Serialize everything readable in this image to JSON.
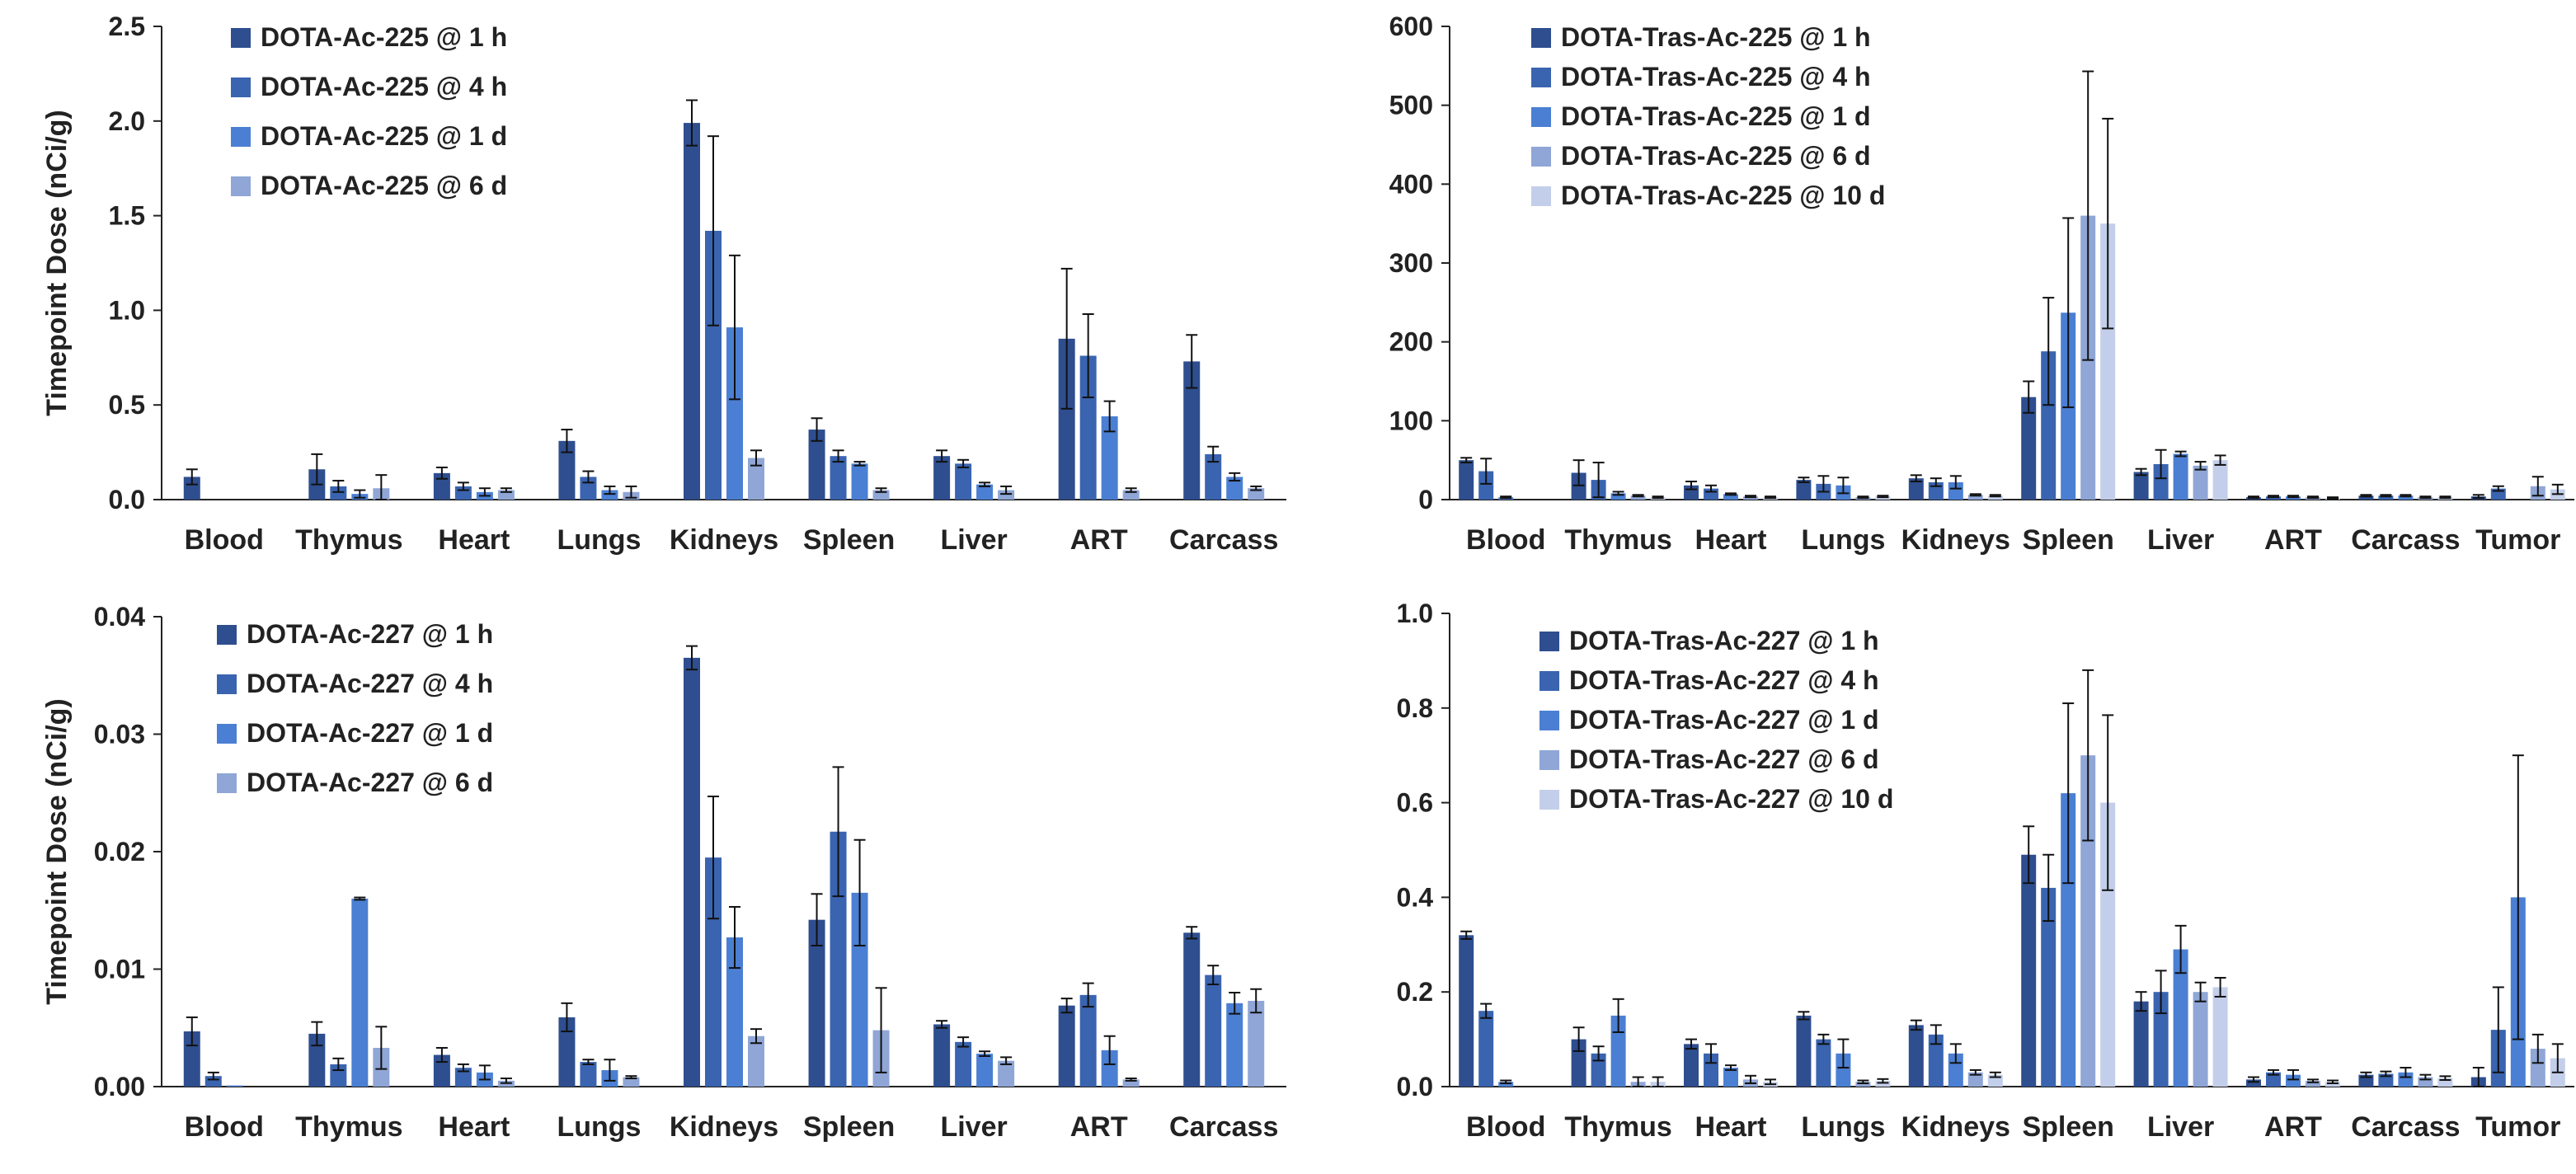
{
  "colors": {
    "s1": "#2E4E8F",
    "s2": "#3A64B0",
    "s3": "#4B7FD3",
    "s4": "#8FA6D6",
    "s5": "#C3CFEA",
    "axis": "#222222",
    "error": "#111111"
  },
  "chart_data": [
    {
      "type": "bar",
      "ylabel": "Timepoint Dose (nCi/g)",
      "ylim": [
        0,
        2.5
      ],
      "yticks": [
        "0.0",
        "0.5",
        "1.0",
        "1.5",
        "2.0",
        "2.5"
      ],
      "legend_position": "top-left",
      "categories": [
        "Blood",
        "Thymus",
        "Heart",
        "Lungs",
        "Kidneys",
        "Spleen",
        "Liver",
        "ART",
        "Carcass"
      ],
      "series": [
        {
          "name": "DOTA-Ac-225 @ 1 h",
          "values": [
            0.12,
            0.16,
            0.14,
            0.31,
            1.99,
            0.37,
            0.23,
            0.85,
            0.73
          ],
          "errors": [
            0.04,
            0.08,
            0.03,
            0.06,
            0.12,
            0.06,
            0.03,
            0.37,
            0.14
          ]
        },
        {
          "name": "DOTA-Ac-225 @ 4 h",
          "values": [
            0.0,
            0.07,
            0.07,
            0.12,
            1.42,
            0.23,
            0.19,
            0.76,
            0.24
          ]
        },
        {
          "name": "DOTA-Ac-225 @ 1 d",
          "values": [
            0.0,
            0.03,
            0.04,
            0.05,
            0.91,
            0.19,
            0.08,
            0.44,
            0.12
          ]
        },
        {
          "name": "DOTA-Ac-225 @ 6 d",
          "values": [
            0.0,
            0.06,
            0.05,
            0.04,
            0.22,
            0.05,
            0.05,
            0.05,
            0.06
          ]
        }
      ],
      "errors": [
        [
          0.04,
          0.08,
          0.03,
          0.06,
          0.12,
          0.06,
          0.03,
          0.37,
          0.14
        ],
        [
          0.0,
          0.03,
          0.02,
          0.03,
          0.5,
          0.03,
          0.02,
          0.22,
          0.04
        ],
        [
          0.0,
          0.02,
          0.02,
          0.02,
          0.38,
          0.01,
          0.01,
          0.08,
          0.02
        ],
        [
          0.0,
          0.07,
          0.01,
          0.03,
          0.04,
          0.01,
          0.02,
          0.01,
          0.01
        ]
      ]
    },
    {
      "type": "bar",
      "ylabel": "",
      "ylim": [
        0,
        600
      ],
      "yticks": [
        "0",
        "100",
        "200",
        "300",
        "400",
        "500",
        "600"
      ],
      "legend_position": "top-left",
      "categories": [
        "Blood",
        "Thymus",
        "Heart",
        "Lungs",
        "Kidneys",
        "Spleen",
        "Liver",
        "ART",
        "Carcass",
        "Tumor"
      ],
      "series": [
        {
          "name": "DOTA-Tras-Ac-225 @ 1 h",
          "values": [
            50,
            34,
            18,
            25,
            27,
            130,
            35,
            3,
            5,
            4
          ]
        },
        {
          "name": "DOTA-Tras-Ac-225 @ 4 h",
          "values": [
            36,
            25,
            14,
            20,
            22,
            188,
            45,
            4,
            5,
            14
          ]
        },
        {
          "name": "DOTA-Tras-Ac-225 @ 1 d",
          "values": [
            3,
            8,
            7,
            18,
            22,
            237,
            58,
            4,
            5,
            0
          ]
        },
        {
          "name": "DOTA-Tras-Ac-225 @ 6 d",
          "values": [
            0,
            5,
            4,
            3,
            6,
            360,
            43,
            3,
            3,
            17
          ]
        },
        {
          "name": "DOTA-Tras-Ac-225 @ 10 d",
          "values": [
            0,
            3,
            3,
            4,
            5,
            350,
            50,
            2,
            3,
            13
          ]
        }
      ],
      "errors": [
        [
          3,
          16,
          5,
          3,
          4,
          20,
          4,
          1,
          1,
          2
        ],
        [
          16,
          22,
          4,
          10,
          5,
          68,
          18,
          1,
          1,
          3
        ],
        [
          1,
          2,
          1,
          10,
          8,
          120,
          3,
          1,
          1,
          0
        ],
        [
          0,
          1,
          1,
          1,
          1,
          183,
          5,
          1,
          1,
          12
        ],
        [
          0,
          1,
          1,
          1,
          1,
          133,
          6,
          1,
          1,
          6
        ]
      ]
    },
    {
      "type": "bar",
      "ylabel": "Timepoint Dose (nCi/g)",
      "ylim": [
        0,
        0.04
      ],
      "yticks": [
        "0.00",
        "0.01",
        "0.02",
        "0.03",
        "0.04"
      ],
      "legend_position": "top-left",
      "categories": [
        "Blood",
        "Thymus",
        "Heart",
        "Lungs",
        "Kidneys",
        "Spleen",
        "Liver",
        "ART",
        "Carcass"
      ],
      "series": [
        {
          "name": "DOTA-Ac-227 @ 1 h",
          "values": [
            0.0047,
            0.0045,
            0.0027,
            0.0059,
            0.0365,
            0.0142,
            0.0053,
            0.0069,
            0.0131
          ]
        },
        {
          "name": "DOTA-Ac-227 @ 4 h",
          "values": [
            0.0009,
            0.0019,
            0.0016,
            0.0021,
            0.0195,
            0.0217,
            0.0038,
            0.0078,
            0.0095
          ]
        },
        {
          "name": "DOTA-Ac-227 @ 1 d",
          "values": [
            0.0001,
            0.016,
            0.0012,
            0.0014,
            0.0127,
            0.0165,
            0.0028,
            0.0031,
            0.0071
          ]
        },
        {
          "name": "DOTA-Ac-227 @ 6 d",
          "values": [
            0.0,
            0.0033,
            0.0005,
            0.0008,
            0.0043,
            0.0048,
            0.0022,
            0.0006,
            0.0073
          ]
        }
      ],
      "errors": [
        [
          0.0012,
          0.001,
          0.0006,
          0.0012,
          0.001,
          0.0022,
          0.0003,
          0.0006,
          0.0005
        ],
        [
          0.0003,
          0.0005,
          0.0003,
          0.0002,
          0.0052,
          0.0055,
          0.0004,
          0.001,
          0.0008
        ],
        [
          0.0,
          0.0001,
          0.0006,
          0.0009,
          0.0026,
          0.0045,
          0.0002,
          0.0012,
          0.0009
        ],
        [
          0.0,
          0.0018,
          0.0002,
          0.0001,
          0.0006,
          0.0036,
          0.0003,
          0.0001,
          0.001
        ]
      ]
    },
    {
      "type": "bar",
      "ylabel": "",
      "ylim": [
        0,
        1.0
      ],
      "yticks": [
        "0.0",
        "0.2",
        "0.4",
        "0.6",
        "0.8",
        "1.0"
      ],
      "legend_position": "top-left",
      "categories": [
        "Blood",
        "Thymus",
        "Heart",
        "Lungs",
        "Kidneys",
        "Spleen",
        "Liver",
        "ART",
        "Carcass",
        "Tumor"
      ],
      "series": [
        {
          "name": "DOTA-Tras-Ac-227 @ 1 h",
          "values": [
            0.32,
            0.1,
            0.09,
            0.15,
            0.13,
            0.49,
            0.18,
            0.015,
            0.025,
            0.02
          ]
        },
        {
          "name": "DOTA-Tras-Ac-227 @ 4 h",
          "values": [
            0.16,
            0.07,
            0.07,
            0.1,
            0.11,
            0.42,
            0.2,
            0.03,
            0.027,
            0.12
          ]
        },
        {
          "name": "DOTA-Tras-Ac-227 @ 1 d",
          "values": [
            0.01,
            0.15,
            0.04,
            0.07,
            0.07,
            0.62,
            0.29,
            0.025,
            0.03,
            0.4
          ]
        },
        {
          "name": "DOTA-Tras-Ac-227 @ 6 d",
          "values": [
            0.0,
            0.01,
            0.015,
            0.01,
            0.03,
            0.7,
            0.2,
            0.012,
            0.02,
            0.08
          ]
        },
        {
          "name": "DOTA-Tras-Ac-227 @ 10 d",
          "values": [
            0.0,
            0.01,
            0.01,
            0.012,
            0.025,
            0.6,
            0.21,
            0.01,
            0.018,
            0.06
          ]
        }
      ],
      "errors": [
        [
          0.008,
          0.025,
          0.01,
          0.008,
          0.01,
          0.06,
          0.02,
          0.005,
          0.005,
          0.02
        ],
        [
          0.015,
          0.015,
          0.02,
          0.01,
          0.02,
          0.07,
          0.045,
          0.005,
          0.005,
          0.09
        ],
        [
          0.003,
          0.035,
          0.005,
          0.03,
          0.02,
          0.19,
          0.05,
          0.01,
          0.01,
          0.3
        ],
        [
          0.0,
          0.01,
          0.008,
          0.003,
          0.005,
          0.18,
          0.02,
          0.003,
          0.005,
          0.03
        ],
        [
          0.0,
          0.01,
          0.005,
          0.004,
          0.005,
          0.185,
          0.02,
          0.003,
          0.004,
          0.03
        ]
      ]
    }
  ]
}
